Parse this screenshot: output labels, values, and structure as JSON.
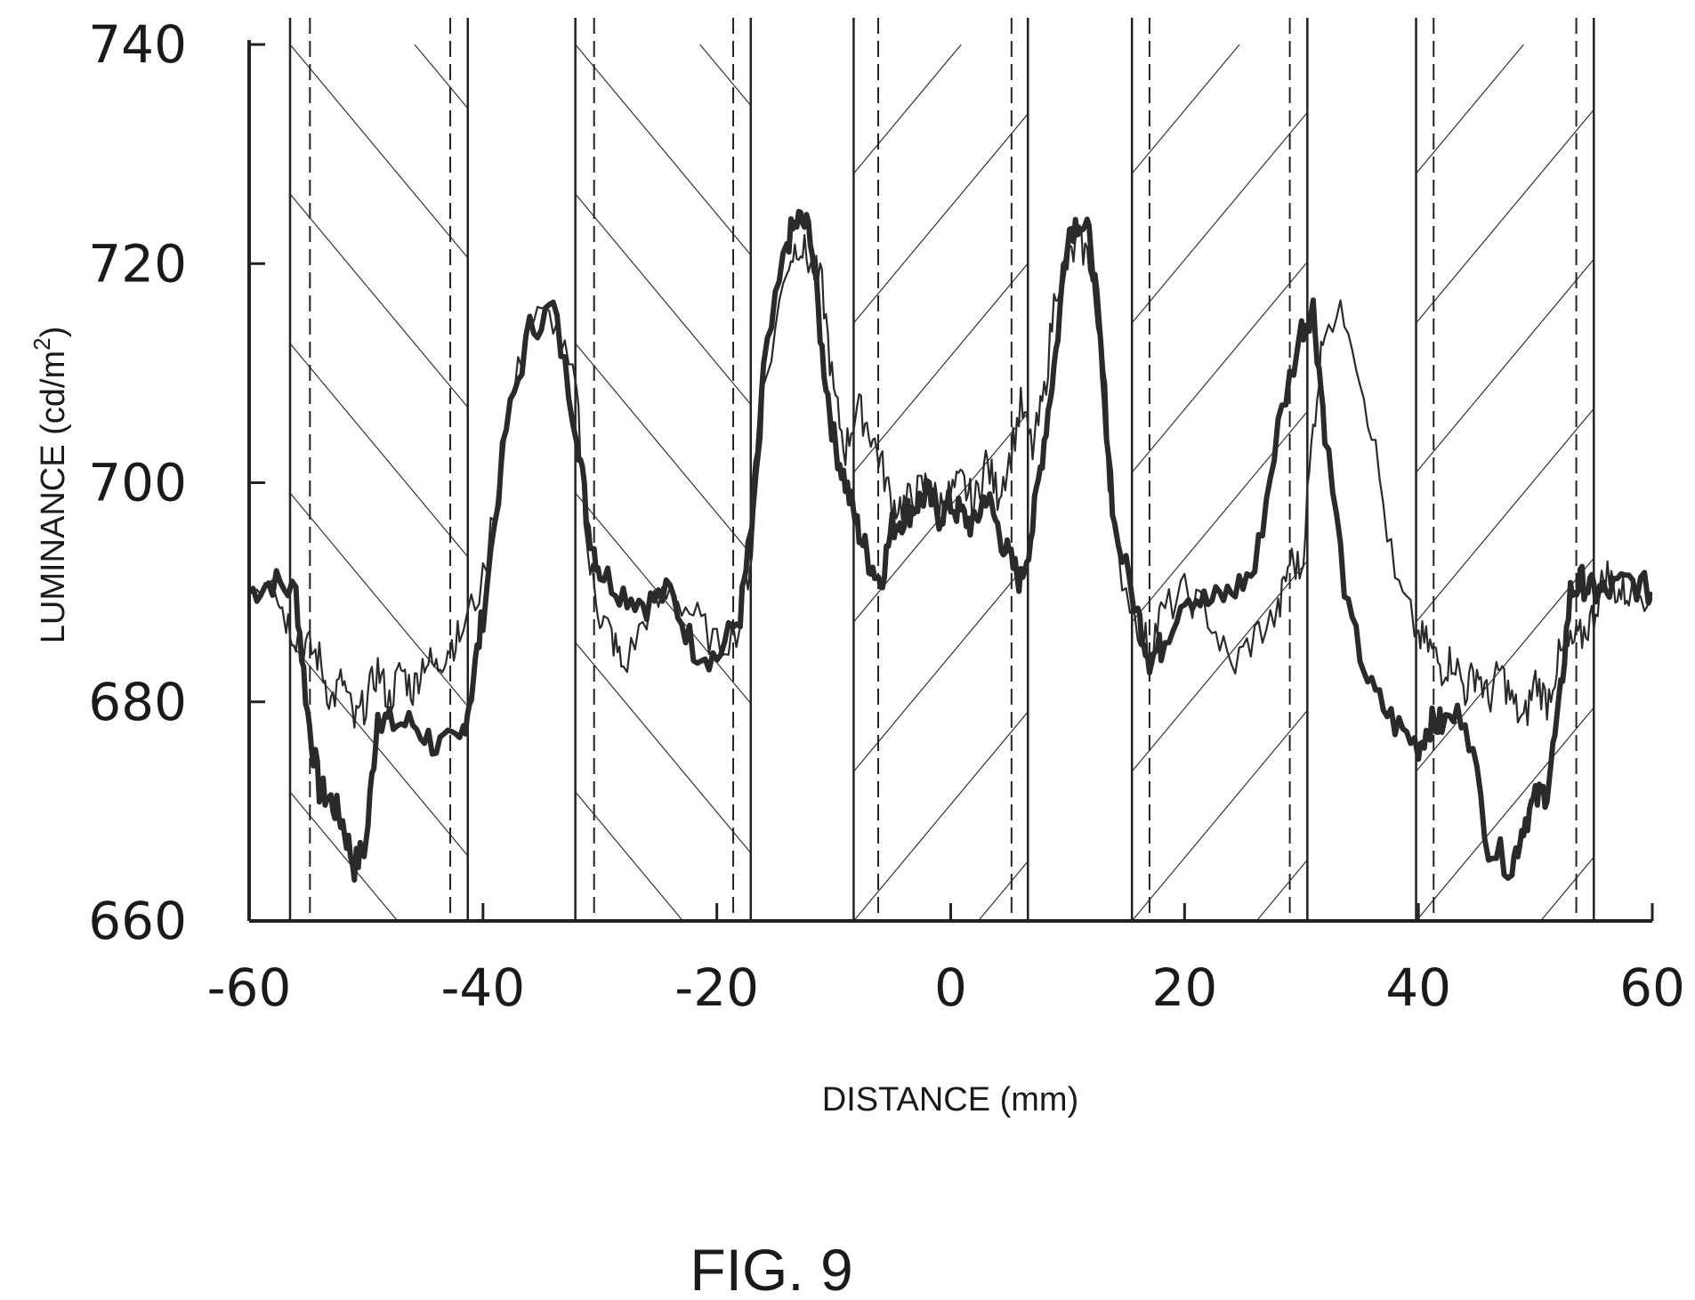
{
  "chart_data": {
    "type": "line",
    "title": "",
    "xlabel": "DISTANCE (mm)",
    "ylabel_main": "LUMINANCE (cd/m",
    "ylabel_sup": "2",
    "ylabel_tail": ")",
    "xlim": [
      -60,
      60
    ],
    "ylim": [
      660,
      740
    ],
    "x_ticks": [
      -60,
      -40,
      -20,
      0,
      20,
      40,
      60
    ],
    "x_tick_labels": [
      "-60",
      "-40",
      "-20",
      "0",
      "20",
      "40",
      "60"
    ],
    "y_ticks": [
      660,
      680,
      700,
      720,
      740
    ],
    "y_tick_labels": [
      "660",
      "680",
      "700",
      "720",
      "740"
    ],
    "grid": false,
    "legend": "none",
    "solid_vertical_lines_x": [
      -56.5,
      -41.3,
      -32.1,
      -17.1,
      -8.3,
      6.6,
      15.5,
      30.5,
      39.8,
      55.0
    ],
    "dashed_vertical_lines_x": [
      -54.8,
      -42.8,
      -30.5,
      -18.6,
      -6.2,
      5.2,
      17.0,
      29.0,
      41.3,
      53.5
    ],
    "hatched_bands": [
      {
        "x0": -56.5,
        "x1": -41.3,
        "direction": "backslash"
      },
      {
        "x0": -32.1,
        "x1": -17.1,
        "direction": "backslash"
      },
      {
        "x0": -8.3,
        "x1": 6.6,
        "direction": "slash"
      },
      {
        "x0": 15.5,
        "x1": 30.5,
        "direction": "slash"
      },
      {
        "x0": 39.8,
        "x1": 55.0,
        "direction": "slash"
      }
    ],
    "series": [
      {
        "style": "thick",
        "x": [
          -60,
          -58,
          -56,
          -55,
          -54,
          -53,
          -52,
          -51,
          -50,
          -49,
          -48,
          -46,
          -44,
          -42,
          -41,
          -40,
          -38,
          -36,
          -34,
          -32,
          -31,
          -30,
          -28,
          -26,
          -24,
          -22,
          -20,
          -18,
          -17,
          -16,
          -14,
          -13,
          -12,
          -11,
          -10,
          -9,
          -8,
          -7,
          -6,
          -5,
          -4,
          -3,
          -2,
          -1,
          0,
          1,
          2,
          3,
          4,
          5,
          6,
          7,
          8,
          9,
          10,
          11,
          12,
          13,
          14,
          16,
          17,
          18,
          20,
          22,
          24,
          26,
          28,
          30,
          31,
          32,
          34,
          36,
          38,
          40,
          41,
          42,
          44,
          46,
          48,
          49,
          50,
          51,
          52,
          53,
          54,
          55,
          56,
          58,
          60
        ],
        "y": [
          690,
          691,
          690,
          679,
          672,
          671,
          669,
          665,
          667,
          679,
          678,
          678,
          676,
          676,
          681,
          688,
          705,
          714,
          716,
          705,
          696,
          692,
          690,
          689,
          690,
          685,
          684,
          688,
          696,
          710,
          722,
          724,
          723,
          712,
          704,
          700,
          696,
          693,
          691,
          696,
          697,
          698,
          699,
          697,
          698,
          697,
          696,
          699,
          696,
          693,
          691,
          696,
          704,
          712,
          723,
          724,
          722,
          710,
          696,
          688,
          684,
          685,
          690,
          689,
          690,
          692,
          705,
          714,
          716,
          705,
          688,
          681,
          678,
          676,
          678,
          678,
          679,
          667,
          665,
          669,
          671,
          672,
          679,
          690,
          691,
          690,
          690,
          691,
          690
        ]
      },
      {
        "style": "thin",
        "x": [
          -60,
          -58,
          -57,
          -56,
          -55,
          -54,
          -53,
          -52,
          -51,
          -50,
          -49,
          -48,
          -47,
          -46,
          -45,
          -44,
          -43,
          -42,
          -40,
          -38,
          -36,
          -34,
          -32,
          -31,
          -30,
          -29,
          -28,
          -26,
          -24,
          -22,
          -20,
          -18,
          -17,
          -16,
          -14,
          -13,
          -12,
          -11,
          -10,
          -9,
          -8,
          -7,
          -6,
          -5,
          -4,
          -3,
          -2,
          -1,
          0,
          1,
          2,
          3,
          4,
          5,
          6,
          7,
          8,
          9,
          10,
          11,
          12,
          13,
          14,
          16,
          17,
          18,
          20,
          22,
          24,
          26,
          28,
          29,
          30,
          31,
          32,
          34,
          36,
          38,
          40,
          41,
          42,
          43,
          44,
          45,
          46,
          47,
          48,
          49,
          50,
          51,
          52,
          53,
          54,
          55,
          56,
          57,
          58,
          60
        ],
        "y": [
          690,
          692,
          688,
          686,
          685,
          684,
          680,
          682,
          678,
          680,
          683,
          680,
          683,
          681,
          684,
          683,
          685,
          686,
          691,
          705,
          715,
          715,
          708,
          693,
          688,
          686,
          683,
          688,
          690,
          688,
          685,
          687,
          694,
          708,
          720,
          722,
          720,
          718,
          708,
          703,
          707,
          705,
          702,
          698,
          698,
          699,
          700,
          698,
          699,
          700,
          698,
          702,
          699,
          702,
          707,
          703,
          708,
          718,
          720,
          722,
          720,
          708,
          694,
          687,
          685,
          688,
          690,
          688,
          683,
          686,
          688,
          693,
          692,
          705,
          715,
          715,
          705,
          691,
          686,
          685,
          683,
          684,
          681,
          683,
          680,
          683,
          680,
          678,
          682,
          680,
          684,
          685,
          686,
          688,
          692,
          690,
          690,
          690
        ]
      }
    ]
  },
  "figure_label": "FIG. 9"
}
